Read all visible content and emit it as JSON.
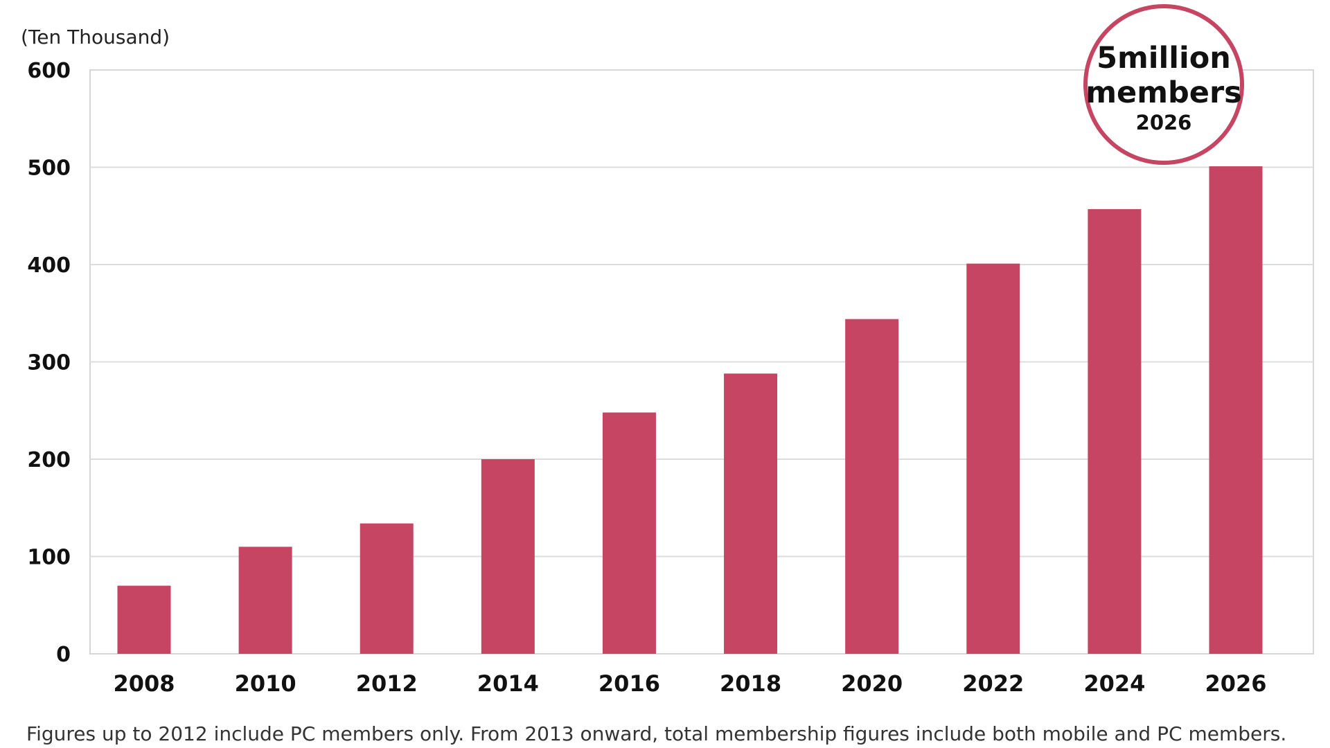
{
  "chart_data": {
    "type": "bar",
    "unit_label": "(Ten Thousand)",
    "categories": [
      "2008",
      "2010",
      "2012",
      "2014",
      "2016",
      "2018",
      "2020",
      "2022",
      "2024",
      "2026"
    ],
    "values": [
      70,
      110,
      134,
      200,
      248,
      288,
      344,
      401,
      457,
      501
    ],
    "ylim": [
      0,
      600
    ],
    "yticks": [
      "0",
      "100",
      "200",
      "300",
      "400",
      "500",
      "600"
    ],
    "xlabel": "",
    "ylabel": "",
    "grid": true,
    "bar_color": "#c54562",
    "grid_color": "#dcdcdc",
    "annotation": {
      "line1": "5million",
      "line2": "members",
      "year": "2026",
      "circle_color": "#c54562"
    },
    "footnote": "Figures up to 2012 include PC members only. From 2013 onward, total membership figures include both mobile and PC members."
  }
}
